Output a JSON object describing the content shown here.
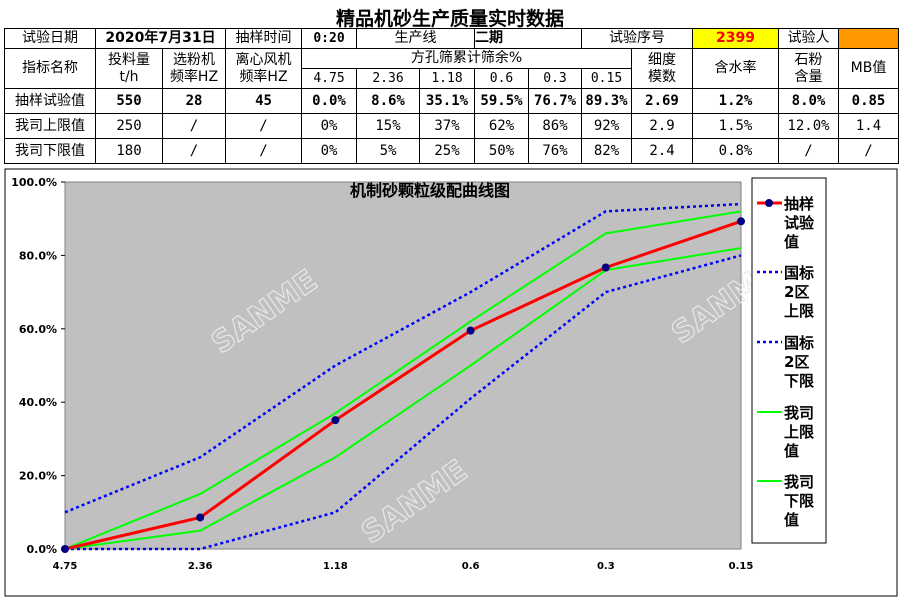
{
  "title": "精品机砂生产质量实时数据",
  "info_row": {
    "date_label": "试验日期",
    "date": "2020年7月31日",
    "time_label": "抽样时间",
    "time": "0:20",
    "line_label": "生产线",
    "line": "二期",
    "seq_label": "试验序号",
    "seq": "2399",
    "tester_label": "试验人",
    "tester_redacted_color": "#ff9900"
  },
  "header": {
    "name": "指标名称",
    "feed": [
      "投料量",
      "t/h"
    ],
    "classifier": [
      "选粉机",
      "频率HZ"
    ],
    "fan": [
      "离心风机",
      "频率HZ"
    ],
    "sieve_group": "方孔筛累计筛余%",
    "sieves": [
      "4.75",
      "2.36",
      "1.18",
      "0.6",
      "0.3",
      "0.15"
    ],
    "fineness": [
      "细度",
      "模数"
    ],
    "moisture": "含水率",
    "stone_powder": [
      "石粉",
      "含量"
    ],
    "mb": "MB值"
  },
  "rows": [
    {
      "label": "抽样试验值",
      "values": [
        "550",
        "28",
        "45",
        "0.0%",
        "8.6%",
        "35.1%",
        "59.5%",
        "76.7%",
        "89.3%",
        "2.69",
        "1.2%",
        "8.0%",
        "0.85"
      ]
    },
    {
      "label": "我司上限值",
      "values": [
        "250",
        "/",
        "/",
        "0%",
        "15%",
        "37%",
        "62%",
        "86%",
        "92%",
        "2.9",
        "1.5%",
        "12.0%",
        "1.4"
      ]
    },
    {
      "label": "我司下限值",
      "values": [
        "180",
        "/",
        "/",
        "0%",
        "5%",
        "25%",
        "50%",
        "76%",
        "82%",
        "2.4",
        "0.8%",
        "/",
        "/"
      ]
    }
  ],
  "watermark": "SANME",
  "chart_data": {
    "type": "line",
    "title": "机制砂颗粒级配曲线图",
    "categories": [
      "4.75",
      "2.36",
      "1.18",
      "0.6",
      "0.3",
      "0.15"
    ],
    "ylim": [
      0,
      100
    ],
    "yticks": [
      "0.0%",
      "20.0%",
      "40.0%",
      "60.0%",
      "80.0%",
      "100.0%"
    ],
    "plot_background": "#c0c0c0",
    "legend_position": "right",
    "series": [
      {
        "name": "抽样试验值",
        "legend_lines": [
          "抽样",
          "试验",
          "值"
        ],
        "values": [
          0.0,
          8.6,
          35.1,
          59.5,
          76.7,
          89.3
        ],
        "color": "#ff0000",
        "style": "solid-markers",
        "marker_color": "#000080"
      },
      {
        "name": "国标2区上限",
        "legend_lines": [
          "国标",
          "2区",
          "上限"
        ],
        "values": [
          10,
          25,
          50,
          70,
          92,
          94
        ],
        "color": "#0000ff",
        "style": "dotted"
      },
      {
        "name": "国标2区下限",
        "legend_lines": [
          "国标",
          "2区",
          "下限"
        ],
        "values": [
          0,
          0,
          10,
          41,
          70,
          80
        ],
        "color": "#0000ff",
        "style": "dotted"
      },
      {
        "name": "我司上限值",
        "legend_lines": [
          "我司",
          "上限",
          "值"
        ],
        "values": [
          0,
          15,
          37,
          62,
          86,
          92
        ],
        "color": "#00ff00",
        "style": "solid"
      },
      {
        "name": "我司下限值",
        "legend_lines": [
          "我司",
          "下限",
          "值"
        ],
        "values": [
          0,
          5,
          25,
          50,
          76,
          82
        ],
        "color": "#00ff00",
        "style": "solid"
      }
    ]
  }
}
